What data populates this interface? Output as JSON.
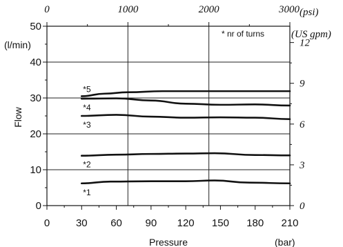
{
  "chart_data": {
    "type": "line",
    "xlabel": "Pressure",
    "xunit": "(bar)",
    "ylabel": "Flow",
    "yunit": "(l/min)",
    "x2unit": "(psi)",
    "y2unit": "(US gpm)",
    "note": "* nr of turns",
    "xlim": [
      0,
      210
    ],
    "ylim": [
      0,
      50
    ],
    "x2lim": [
      0,
      3000
    ],
    "y2lim": [
      0,
      13.2
    ],
    "xticks": [
      "0",
      "30",
      "60",
      "90",
      "120",
      "150",
      "180",
      "210"
    ],
    "yticks": [
      "0",
      "10",
      "20",
      "30",
      "40",
      "50"
    ],
    "x2ticks": [
      "0",
      "1000",
      "2000",
      "3000"
    ],
    "y2ticks": [
      "0",
      "3",
      "6",
      "9",
      "12"
    ],
    "grid": true,
    "series": [
      {
        "name": "*5",
        "x": [
          30,
          50,
          70,
          100,
          150,
          210
        ],
        "y": [
          30.5,
          31.2,
          31.6,
          31.9,
          31.9,
          31.9
        ]
      },
      {
        "name": "*4",
        "x": [
          30,
          60,
          90,
          120,
          150,
          180,
          210
        ],
        "y": [
          29.8,
          29.9,
          29.3,
          28.4,
          28.1,
          28.2,
          27.9
        ]
      },
      {
        "name": "*3",
        "x": [
          30,
          60,
          90,
          120,
          150,
          180,
          210
        ],
        "y": [
          25.0,
          25.3,
          24.8,
          24.5,
          24.6,
          24.5,
          24.1
        ]
      },
      {
        "name": "*2",
        "x": [
          30,
          60,
          90,
          120,
          145,
          180,
          210
        ],
        "y": [
          13.9,
          14.2,
          14.4,
          14.5,
          14.6,
          14.1,
          14.0
        ]
      },
      {
        "name": "*1",
        "x": [
          30,
          55,
          90,
          120,
          145,
          175,
          210
        ],
        "y": [
          6.2,
          6.7,
          6.8,
          6.8,
          7.0,
          6.4,
          6.2
        ]
      }
    ]
  }
}
